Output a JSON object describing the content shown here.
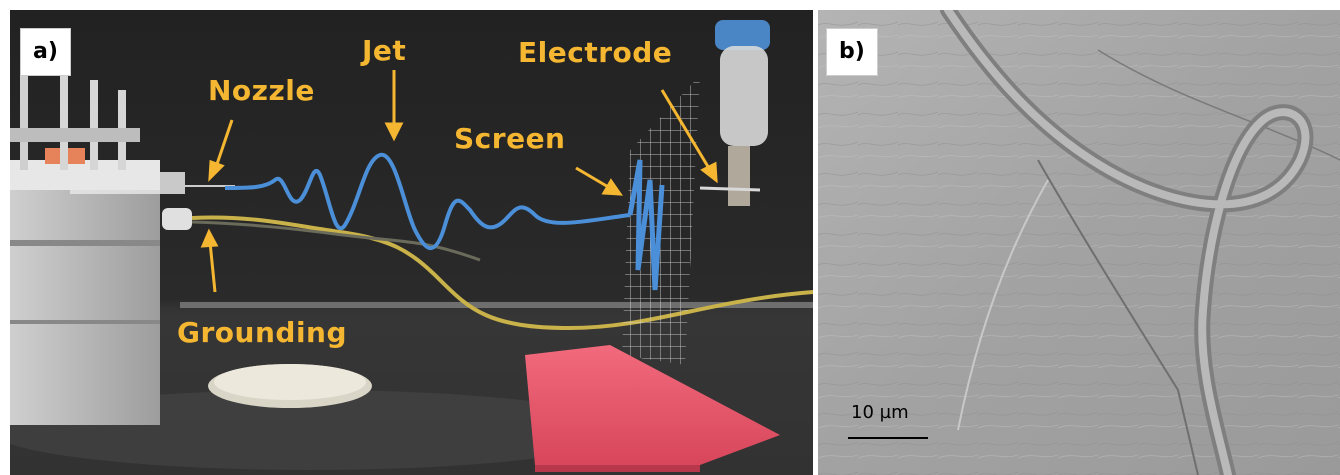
{
  "panel_a": {
    "label": "a)",
    "annotations": {
      "nozzle": "Nozzle",
      "jet": "Jet",
      "electrode": "Electrode",
      "screen": "Screen",
      "grounding": "Grounding"
    },
    "colors": {
      "annotation": "#f5b731",
      "jet": "#4b8fd8",
      "foam": "#e9566a",
      "background": "#1a1a1a"
    }
  },
  "panel_b": {
    "label": "b)",
    "scale_bar_label": "10 µm",
    "colors": {
      "sem": "#a6a6a6"
    }
  }
}
